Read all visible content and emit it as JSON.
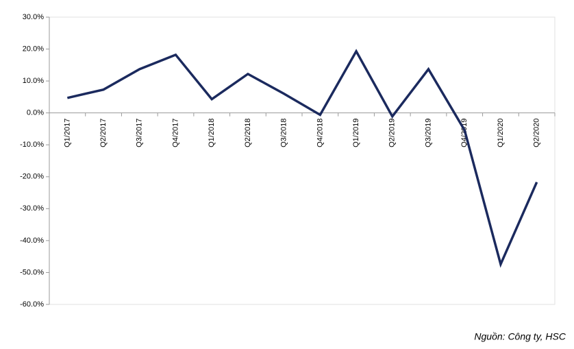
{
  "chart_data": {
    "type": "line",
    "categories": [
      "Q1/2017",
      "Q2/2017",
      "Q3/2017",
      "Q4/2017",
      "Q1/2018",
      "Q2/2018",
      "Q3/2018",
      "Q4/2018",
      "Q1/2019",
      "Q2/2019",
      "Q3/2019",
      "Q4/2019",
      "Q1/2020",
      "Q2/2020"
    ],
    "values": [
      4.7,
      7.3,
      13.7,
      18.2,
      4.3,
      12.2,
      6.0,
      -0.6,
      19.3,
      -1.1,
      13.7,
      -5.4,
      -47.4,
      -21.7
    ],
    "color": "#1b2a5e",
    "ylim": [
      -60,
      30
    ],
    "yticks": [
      {
        "value": -60,
        "label": "-60.0%"
      },
      {
        "value": -50,
        "label": "-50.0%"
      },
      {
        "value": -40,
        "label": "-40.0%"
      },
      {
        "value": -30,
        "label": "-30.0%"
      },
      {
        "value": -20,
        "label": "-20.0%"
      },
      {
        "value": -10,
        "label": "-10.0%"
      },
      {
        "value": 0,
        "label": "0.0%"
      },
      {
        "value": 10,
        "label": "10.0%"
      },
      {
        "value": 20,
        "label": "20.0%"
      },
      {
        "value": 30,
        "label": "30.0%"
      }
    ],
    "grid": false,
    "source": "Nguồn: Công ty, HSC"
  }
}
